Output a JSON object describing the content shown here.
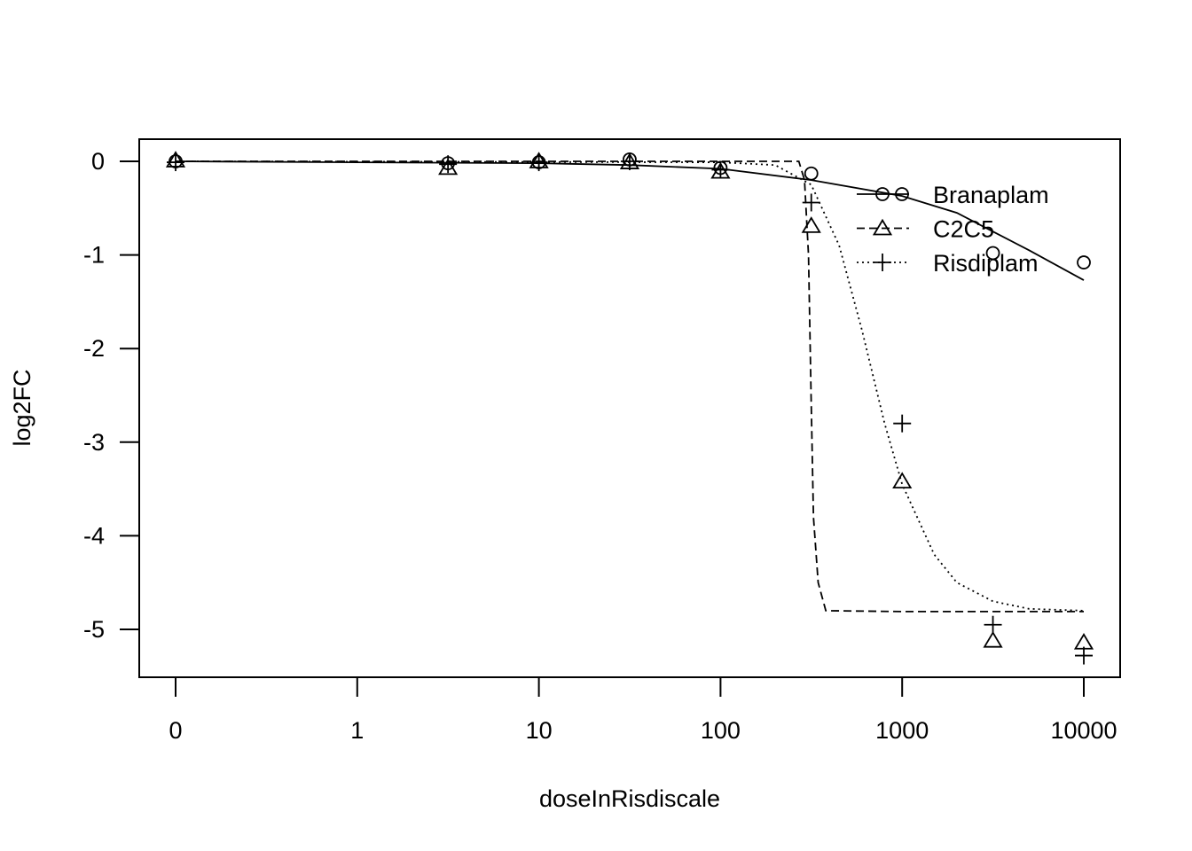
{
  "chart_data": {
    "type": "scatter",
    "title": "",
    "xlabel": "doseInRisdiscale",
    "ylabel": "log2FC",
    "x_scale": "log10, with 0 placed one decade below 1",
    "xlim": [
      0,
      10000
    ],
    "ylim": [
      -5.5,
      0.25
    ],
    "x_ticks": [
      "0",
      "1",
      "10",
      "100",
      "1000",
      "10000"
    ],
    "y_ticks": [
      "0",
      "-1",
      "-2",
      "-3",
      "-4",
      "-5"
    ],
    "grid": false,
    "legend_position": "top-right",
    "series": [
      {
        "name": "Branaplam",
        "marker": "circle",
        "line_style": "solid",
        "points": [
          {
            "x": 0,
            "y": 0.0
          },
          {
            "x": 3.16,
            "y": -0.02
          },
          {
            "x": 10,
            "y": -0.01
          },
          {
            "x": 31.6,
            "y": 0.02
          },
          {
            "x": 100,
            "y": -0.07
          },
          {
            "x": 316,
            "y": -0.13
          },
          {
            "x": 3160,
            "y": -0.98
          },
          {
            "x": 10000,
            "y": -1.08
          }
        ],
        "fit": [
          {
            "x": 0,
            "y": 0.0
          },
          {
            "x": 1,
            "y": -0.01
          },
          {
            "x": 10,
            "y": -0.02
          },
          {
            "x": 31.6,
            "y": -0.04
          },
          {
            "x": 100,
            "y": -0.08
          },
          {
            "x": 316,
            "y": -0.2
          },
          {
            "x": 1000,
            "y": -0.37
          },
          {
            "x": 2000,
            "y": -0.55
          },
          {
            "x": 3160,
            "y": -0.75
          },
          {
            "x": 5000,
            "y": -0.95
          },
          {
            "x": 10000,
            "y": -1.27
          }
        ]
      },
      {
        "name": "C2C5",
        "marker": "triangle",
        "line_style": "dashed",
        "points": [
          {
            "x": 0,
            "y": 0.01
          },
          {
            "x": 3.16,
            "y": -0.07
          },
          {
            "x": 10,
            "y": 0.0
          },
          {
            "x": 31.6,
            "y": -0.01
          },
          {
            "x": 100,
            "y": -0.11
          },
          {
            "x": 316,
            "y": -0.69
          },
          {
            "x": 1000,
            "y": -3.42
          },
          {
            "x": 3160,
            "y": -5.12
          },
          {
            "x": 10000,
            "y": -5.14
          }
        ],
        "fit": [
          {
            "x": 0,
            "y": 0.0
          },
          {
            "x": 100,
            "y": 0.0
          },
          {
            "x": 270,
            "y": 0.0
          },
          {
            "x": 290,
            "y": -0.2
          },
          {
            "x": 305,
            "y": -1.0
          },
          {
            "x": 315,
            "y": -2.5
          },
          {
            "x": 325,
            "y": -3.8
          },
          {
            "x": 345,
            "y": -4.5
          },
          {
            "x": 380,
            "y": -4.8
          },
          {
            "x": 1000,
            "y": -4.81
          },
          {
            "x": 10000,
            "y": -4.81
          }
        ]
      },
      {
        "name": "Risdiplam",
        "marker": "plus",
        "line_style": "dotted",
        "points": [
          {
            "x": 0,
            "y": -0.01
          },
          {
            "x": 3.16,
            "y": -0.03
          },
          {
            "x": 10,
            "y": -0.01
          },
          {
            "x": 31.6,
            "y": 0.0
          },
          {
            "x": 100,
            "y": -0.09
          },
          {
            "x": 316,
            "y": -0.44
          },
          {
            "x": 1000,
            "y": -2.8
          },
          {
            "x": 3160,
            "y": -4.95
          },
          {
            "x": 10000,
            "y": -5.28
          }
        ],
        "fit": [
          {
            "x": 0,
            "y": 0.0
          },
          {
            "x": 100,
            "y": -0.01
          },
          {
            "x": 200,
            "y": -0.04
          },
          {
            "x": 316,
            "y": -0.25
          },
          {
            "x": 450,
            "y": -0.9
          },
          {
            "x": 600,
            "y": -1.8
          },
          {
            "x": 800,
            "y": -2.8
          },
          {
            "x": 1000,
            "y": -3.45
          },
          {
            "x": 1500,
            "y": -4.2
          },
          {
            "x": 2000,
            "y": -4.5
          },
          {
            "x": 3160,
            "y": -4.7
          },
          {
            "x": 5000,
            "y": -4.78
          },
          {
            "x": 10000,
            "y": -4.8
          }
        ]
      }
    ]
  }
}
